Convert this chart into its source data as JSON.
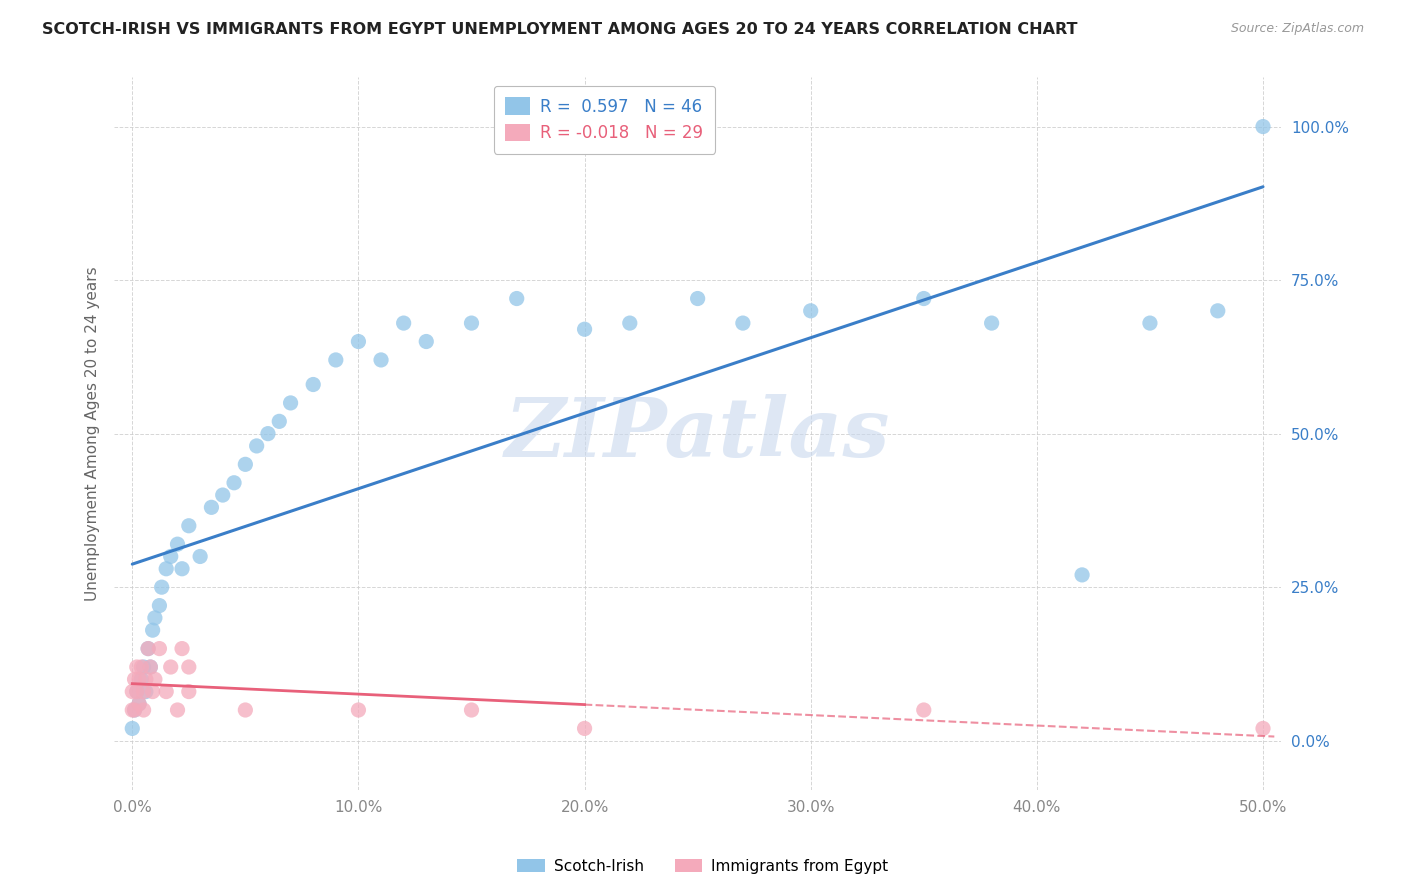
{
  "title": "SCOTCH-IRISH VS IMMIGRANTS FROM EGYPT UNEMPLOYMENT AMONG AGES 20 TO 24 YEARS CORRELATION CHART",
  "source": "Source: ZipAtlas.com",
  "ylabel": "Unemployment Among Ages 20 to 24 years",
  "watermark": "ZIPatlas",
  "legend_scotch_irish": "Scotch-Irish",
  "legend_egypt": "Immigrants from Egypt",
  "R_scotch": 0.597,
  "N_scotch": 46,
  "R_egypt": -0.018,
  "N_egypt": 29,
  "xlim": [
    -0.008,
    0.508
  ],
  "ylim": [
    -0.08,
    1.08
  ],
  "xticks": [
    0.0,
    0.1,
    0.2,
    0.3,
    0.4,
    0.5
  ],
  "xtick_labels": [
    "0.0%",
    "10.0%",
    "20.0%",
    "30.0%",
    "40.0%",
    "50.0%"
  ],
  "yticks": [
    0.0,
    0.25,
    0.5,
    0.75,
    1.0
  ],
  "ytick_labels": [
    "0.0%",
    "25.0%",
    "50.0%",
    "75.0%",
    "100.0%"
  ],
  "color_scotch": "#92C5E8",
  "color_egypt": "#F4AABB",
  "line_color_scotch": "#3A7EC8",
  "line_color_egypt": "#E8607A",
  "scotch_x": [
    0.0,
    0.001,
    0.002,
    0.003,
    0.004,
    0.005,
    0.006,
    0.007,
    0.008,
    0.009,
    0.01,
    0.012,
    0.013,
    0.015,
    0.017,
    0.02,
    0.022,
    0.025,
    0.03,
    0.035,
    0.04,
    0.045,
    0.05,
    0.055,
    0.06,
    0.065,
    0.07,
    0.08,
    0.09,
    0.1,
    0.11,
    0.12,
    0.13,
    0.15,
    0.17,
    0.2,
    0.22,
    0.25,
    0.27,
    0.3,
    0.35,
    0.38,
    0.42,
    0.45,
    0.48,
    0.5
  ],
  "scotch_y": [
    0.02,
    0.05,
    0.08,
    0.06,
    0.1,
    0.12,
    0.08,
    0.15,
    0.12,
    0.18,
    0.2,
    0.22,
    0.25,
    0.28,
    0.3,
    0.32,
    0.28,
    0.35,
    0.3,
    0.38,
    0.4,
    0.42,
    0.45,
    0.48,
    0.5,
    0.52,
    0.55,
    0.58,
    0.62,
    0.65,
    0.62,
    0.68,
    0.65,
    0.68,
    0.72,
    0.67,
    0.68,
    0.72,
    0.68,
    0.7,
    0.72,
    0.68,
    0.27,
    0.68,
    0.7,
    1.0
  ],
  "egypt_x": [
    0.0,
    0.0,
    0.001,
    0.001,
    0.002,
    0.002,
    0.003,
    0.003,
    0.004,
    0.005,
    0.005,
    0.006,
    0.007,
    0.008,
    0.009,
    0.01,
    0.012,
    0.015,
    0.017,
    0.02,
    0.022,
    0.025,
    0.025,
    0.05,
    0.1,
    0.15,
    0.2,
    0.35,
    0.5
  ],
  "egypt_y": [
    0.08,
    0.05,
    0.1,
    0.05,
    0.12,
    0.08,
    0.1,
    0.06,
    0.12,
    0.05,
    0.08,
    0.1,
    0.15,
    0.12,
    0.08,
    0.1,
    0.15,
    0.08,
    0.12,
    0.05,
    0.15,
    0.08,
    0.12,
    0.05,
    0.05,
    0.05,
    0.02,
    0.05,
    0.02
  ],
  "background_color": "#FFFFFF",
  "grid_color": "#CCCCCC"
}
